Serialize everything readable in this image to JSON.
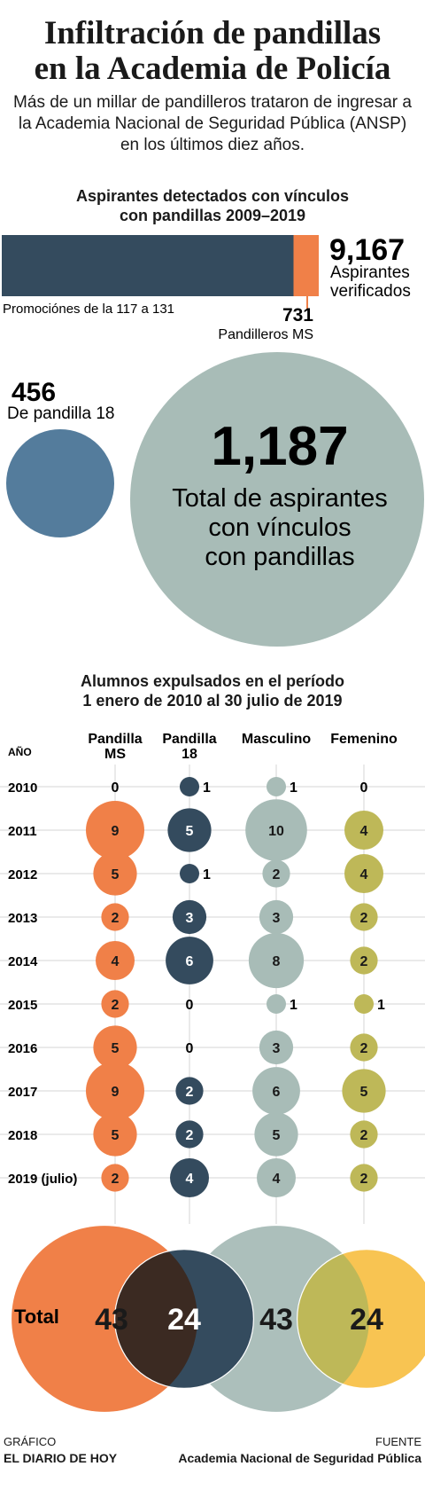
{
  "header": {
    "title_line1": "Infiltración de pandillas",
    "title_line2": "en la Academia de Policía",
    "subtitle_line1": "Más de un millar de pandilleros trataron de ingresar a",
    "subtitle_line2": "la Academia Nacional de Seguridad Pública (ANSP)",
    "subtitle_line3": "en los últimos diez años."
  },
  "colors": {
    "navy": "#344b5e",
    "orange": "#f08048",
    "steel_blue": "#547c9c",
    "sage": "#a8bcb7",
    "olive": "#beb858",
    "yellow": "#f8c452"
  },
  "bar_section": {
    "title_line1": "Aspirantes detectados con vínculos",
    "title_line2": "con pandillas 2009–2019",
    "total_value": "9,167",
    "total_label_line1": "Aspirantes",
    "total_label_line2": "verificados",
    "left_label": "Promociónes de la 117 a 131",
    "ms_value": "731",
    "ms_label": "Pandilleros MS",
    "total": 9167,
    "ms": 731
  },
  "bubble_section": {
    "small_value": "456",
    "small_label": "De pandilla 18",
    "big_value": "1,187",
    "big_label_line1": "Total de aspirantes",
    "big_label_line2": "con vínculos",
    "big_label_line3": "con pandillas"
  },
  "grid_section": {
    "title_line1": "Alumnos expulsados en el período",
    "title_line2": "1 enero de 2010 al 30 julio de 2019",
    "year_header": "AÑO",
    "total_label": "Total"
  },
  "chart_data": {
    "type": "bubble-grid",
    "years": [
      "2010",
      "2011",
      "2012",
      "2013",
      "2014",
      "2015",
      "2016",
      "2017",
      "2018",
      "2019 (julio)"
    ],
    "series": [
      {
        "name": "Pandilla MS",
        "values": [
          0,
          9,
          5,
          2,
          4,
          2,
          5,
          9,
          5,
          2
        ],
        "total": 43
      },
      {
        "name": "Pandilla 18",
        "values": [
          1,
          5,
          1,
          3,
          6,
          0,
          0,
          2,
          2,
          4
        ],
        "total": 24
      },
      {
        "name": "Masculino",
        "values": [
          1,
          10,
          2,
          3,
          8,
          1,
          3,
          6,
          5,
          4
        ],
        "total": 43
      },
      {
        "name": "Femenino",
        "values": [
          0,
          4,
          4,
          2,
          2,
          1,
          2,
          5,
          2,
          2
        ],
        "total": 24
      }
    ]
  },
  "footer": {
    "left_line1": "GRÁFICO",
    "left_line2": "EL DIARIO DE HOY",
    "right_line1": "FUENTE",
    "right_line2": "Academia Nacional de Seguridad Pública"
  }
}
